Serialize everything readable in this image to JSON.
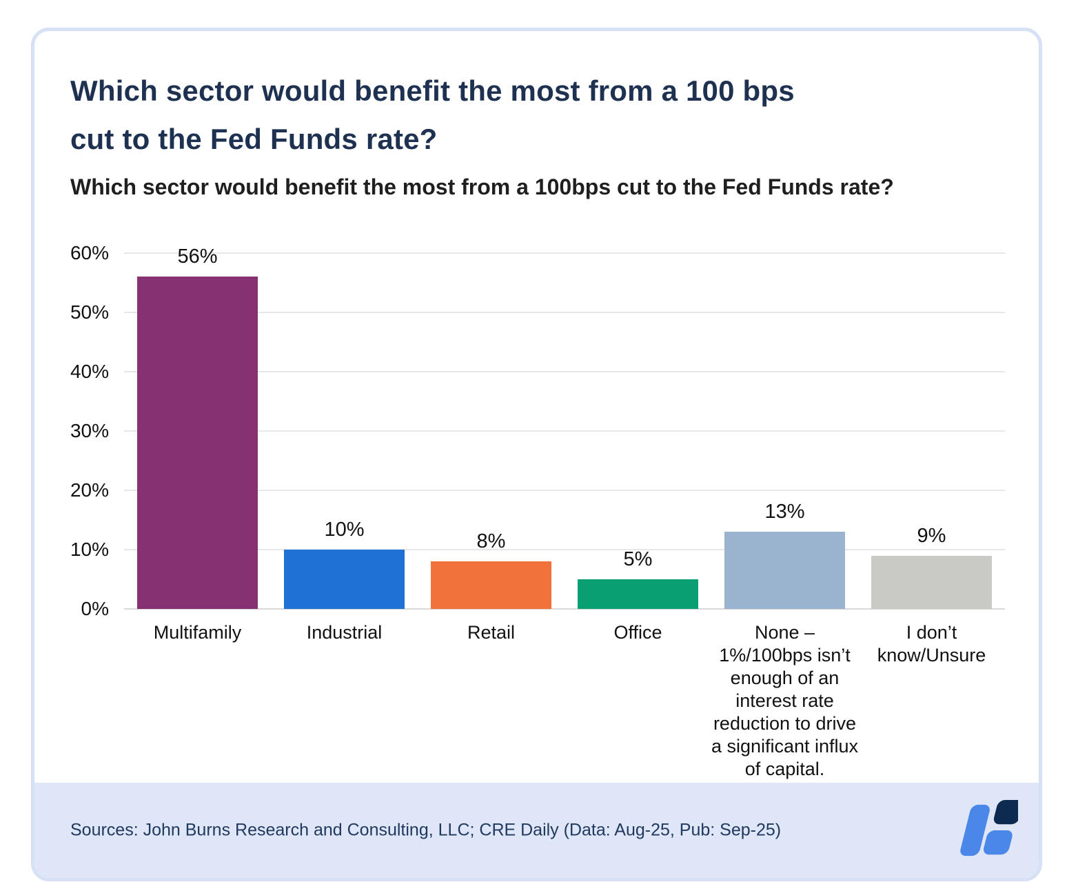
{
  "page": {
    "title_line1": "Which sector would benefit the most from a 100 bps",
    "title_line2": "cut to the Fed Funds rate?",
    "subtitle": "Which sector would benefit the most from a 100bps cut to the Fed Funds rate?",
    "source_text": "Sources: John Burns Research and Consulting, LLC; CRE Daily (Data: Aug-25, Pub: Sep-25)"
  },
  "colors": {
    "title_text": "#1E3151",
    "subtitle_text": "#1F1F1F",
    "card_border": "#D7E1F6",
    "footer_bg": "#DEE6F7",
    "source_text": "#21395E",
    "gridline": "#E7E7E7",
    "axis_line": "#D9D9D9",
    "logo_blue": "#4A87E8",
    "logo_navy": "#0D2B50"
  },
  "chart_data": {
    "type": "bar",
    "title": "Which sector would benefit the most from a 100bps cut to the Fed Funds rate?",
    "categories": [
      "Multifamily",
      "Industrial",
      "Retail",
      "Office",
      "None – 1%/100bps isn’t enough of an interest rate reduction to drive a significant influx of capital.",
      "I don’t know/Unsure"
    ],
    "category_display": [
      "Multifamily",
      "Industrial",
      "Retail",
      "Office",
      "None –\n1%/100bps isn’t\nenough of an\ninterest rate\nreduction to drive\na significant influx\nof capital.",
      "I don’t\nknow/Unsure"
    ],
    "values": [
      56,
      10,
      8,
      5,
      13,
      9
    ],
    "data_labels": [
      "56%",
      "10%",
      "8%",
      "5%",
      "13%",
      "9%"
    ],
    "bar_colors": [
      "#863171",
      "#2071D6",
      "#F1733B",
      "#0A9F72",
      "#9AB4CF",
      "#C9C9C5"
    ],
    "ylim": [
      0,
      60
    ],
    "ytick_step": 10,
    "yticks": [
      "0%",
      "10%",
      "20%",
      "30%",
      "40%",
      "50%",
      "60%"
    ],
    "grid": true,
    "legend": false,
    "xlabel": "",
    "ylabel": ""
  }
}
